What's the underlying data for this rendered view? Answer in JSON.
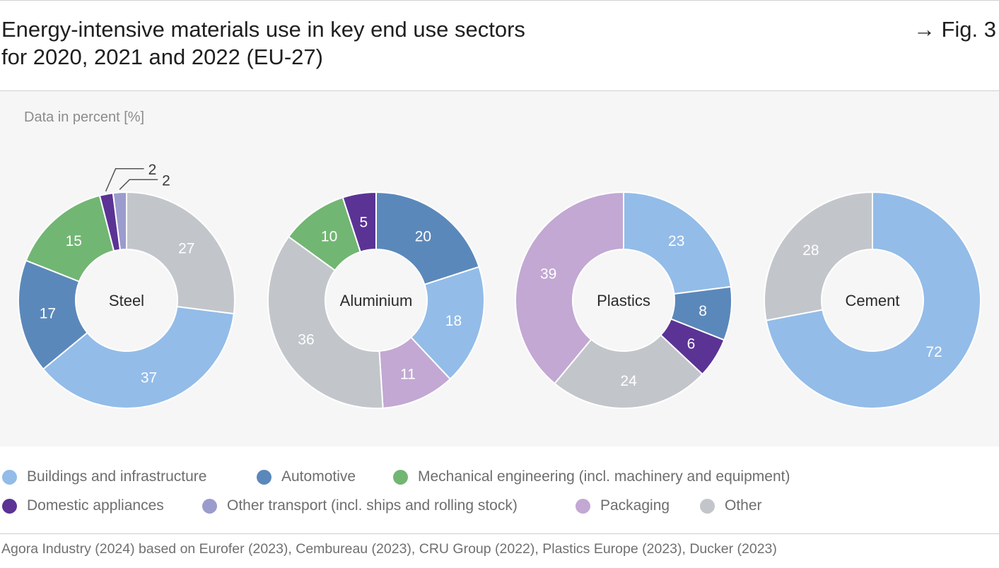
{
  "header": {
    "title_line1": "Energy-intensive materials use in key end use sectors",
    "title_line2": "for 2020, 2021 and 2022 (EU-27)",
    "fig_ref": "→ Fig. 3",
    "unit_note": "Data in percent [%]"
  },
  "colors": {
    "buildings": "#93bce8",
    "automotive": "#5b88ba",
    "mechanical": "#72b673",
    "appliances": "#5b3395",
    "other_transport": "#9b9ccd",
    "packaging": "#c2a8d3",
    "other": "#c2c6cb"
  },
  "legend": [
    {
      "key": "buildings",
      "label": "Buildings and infrastructure"
    },
    {
      "key": "automotive",
      "label": "Automotive"
    },
    {
      "key": "mechanical",
      "label": "Mechanical engineering (incl. machinery and equipment)"
    },
    {
      "key": "appliances",
      "label": "Domestic appliances"
    },
    {
      "key": "other_transport",
      "label": "Other transport (incl. ships and rolling stock)"
    },
    {
      "key": "packaging",
      "label": "Packaging"
    },
    {
      "key": "other",
      "label": "Other"
    }
  ],
  "chart_data": [
    {
      "type": "pie",
      "title": "Steel",
      "slices": [
        {
          "key": "other",
          "value": 27,
          "label": "27"
        },
        {
          "key": "buildings",
          "value": 37,
          "label": "37"
        },
        {
          "key": "automotive",
          "value": 17,
          "label": "17"
        },
        {
          "key": "mechanical",
          "value": 15,
          "label": "15"
        },
        {
          "key": "appliances",
          "value": 2,
          "label": "2"
        },
        {
          "key": "other_transport",
          "value": 2,
          "label": "2"
        }
      ]
    },
    {
      "type": "pie",
      "title": "Aluminium",
      "slices": [
        {
          "key": "automotive",
          "value": 20,
          "label": "20"
        },
        {
          "key": "buildings",
          "value": 18,
          "label": "18"
        },
        {
          "key": "packaging",
          "value": 11,
          "label": "11"
        },
        {
          "key": "other",
          "value": 36,
          "label": "36"
        },
        {
          "key": "mechanical",
          "value": 10,
          "label": "10"
        },
        {
          "key": "appliances",
          "value": 5,
          "label": "5"
        }
      ]
    },
    {
      "type": "pie",
      "title": "Plastics",
      "slices": [
        {
          "key": "buildings",
          "value": 23,
          "label": "23"
        },
        {
          "key": "automotive",
          "value": 8,
          "label": "8"
        },
        {
          "key": "appliances",
          "value": 6,
          "label": "6"
        },
        {
          "key": "other",
          "value": 24,
          "label": "24"
        },
        {
          "key": "packaging",
          "value": 39,
          "label": "39"
        }
      ]
    },
    {
      "type": "pie",
      "title": "Cement",
      "slices": [
        {
          "key": "buildings",
          "value": 72,
          "label": "72"
        },
        {
          "key": "other",
          "value": 28,
          "label": "28"
        }
      ]
    }
  ],
  "source": "Agora Industry (2024) based on Eurofer (2023), Cembureau (2023), CRU Group (2022), Plastics Europe (2023), Ducker (2023)"
}
